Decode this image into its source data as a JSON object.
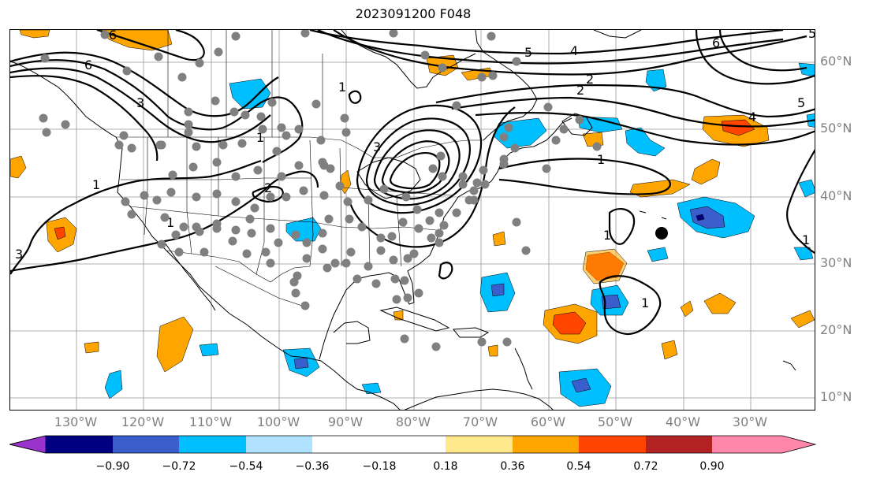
{
  "title": "2023091200 F048",
  "lon_labels": [
    "130°W",
    "120°W",
    "110°W",
    "100°W",
    "90°W",
    "80°W",
    "70°W",
    "60°W",
    "50°W",
    "40°W",
    "30°W"
  ],
  "lat_labels": [
    "60°N",
    "50°N",
    "40°N",
    "30°N",
    "20°N",
    "10°N"
  ],
  "colorbar": {
    "tick_labels": [
      "−0.90",
      "−0.72",
      "−0.54",
      "−0.36",
      "−0.18",
      "0.18",
      "0.36",
      "0.54",
      "0.72",
      "0.90"
    ],
    "colors": [
      "#9933cc",
      "#000080",
      "#3a5fcd",
      "#00bfff",
      "#b0e2ff",
      "#ffffff",
      "#ffe88c",
      "#ffa500",
      "#ff4500",
      "#b22222",
      "#ff88aa"
    ]
  },
  "contour_labels": [
    "6",
    "6",
    "5",
    "4",
    "3",
    "2",
    "2",
    "1",
    "1",
    "1",
    "1",
    "5",
    "4",
    "3",
    "2",
    "1",
    "1",
    "1",
    "1",
    "6",
    "5",
    "3"
  ],
  "marker": {
    "color": "#000000"
  },
  "station_color": "#808080"
}
